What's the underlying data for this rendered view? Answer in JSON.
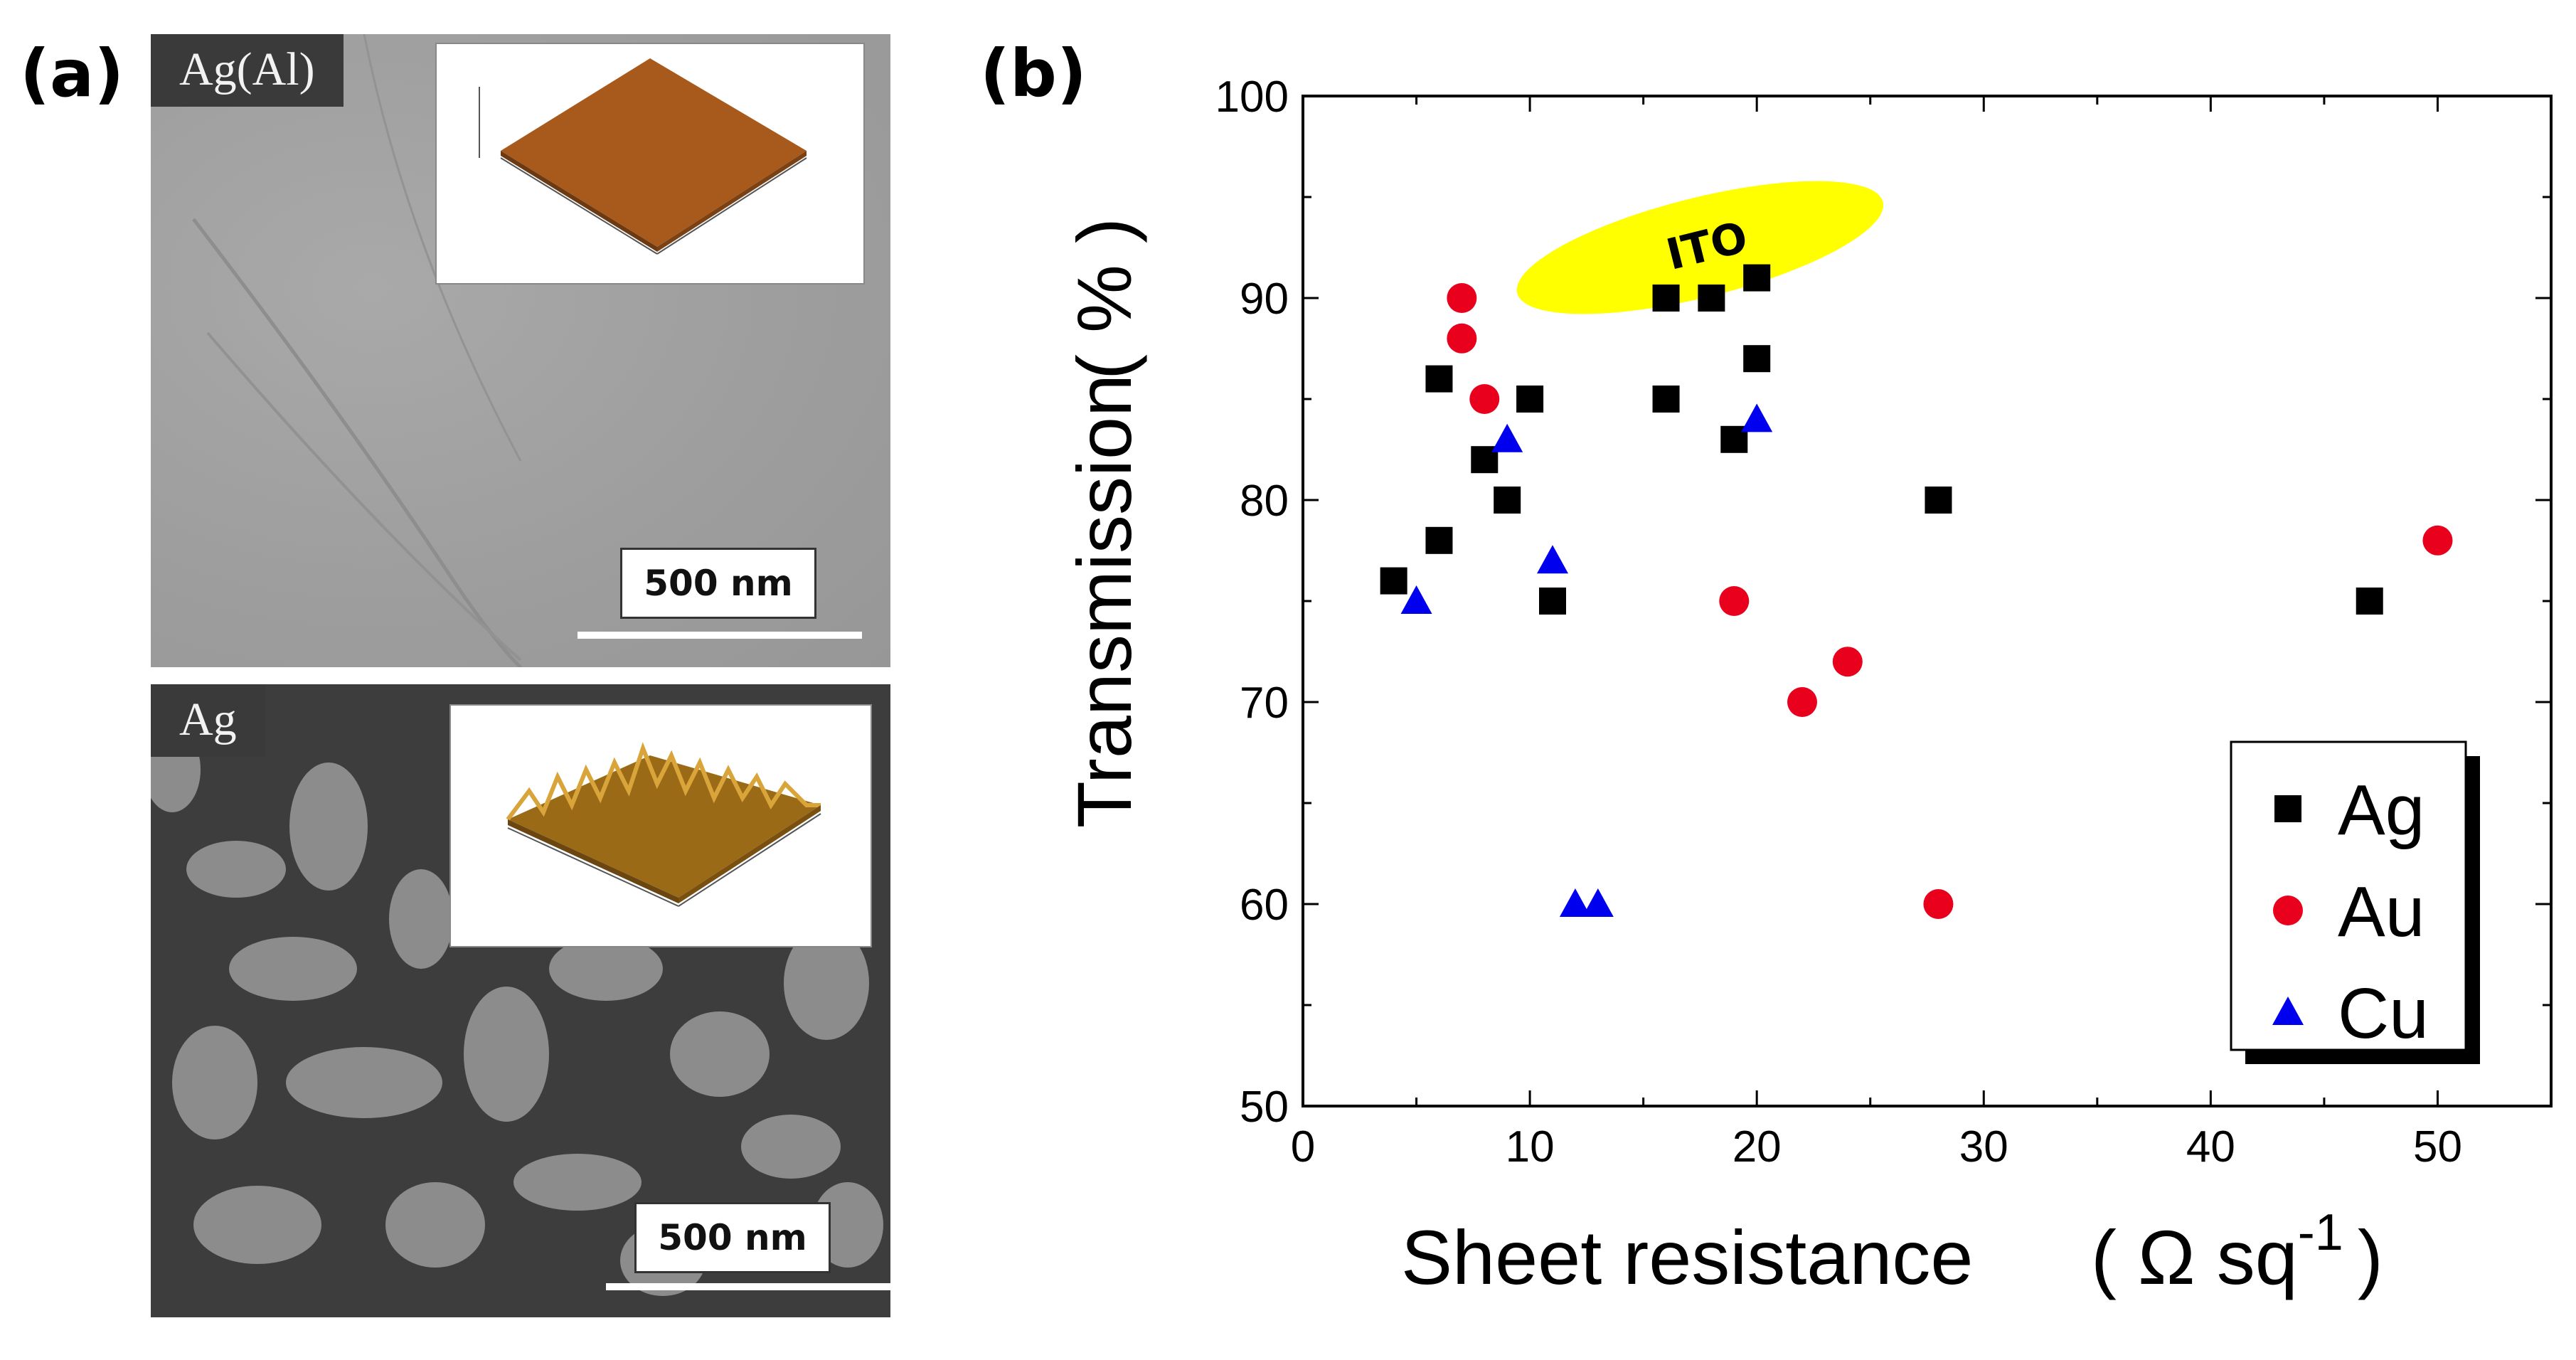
{
  "panel_a": {
    "label": "(a)",
    "top_image": {
      "material_label": "Ag(Al)",
      "scale_bar": "500 nm"
    },
    "bottom_image": {
      "material_label": "Ag",
      "scale_bar": "500 nm"
    }
  },
  "panel_b": {
    "label": "(b)"
  },
  "chart_data": {
    "type": "scatter",
    "title": "",
    "xlabel": "Sheet resistance",
    "xlabel_unit": "( Ω sq",
    "xlabel_unit_exp": "-1",
    "xlabel_unit_close": ")",
    "ylabel": "Transmission",
    "ylabel_unit": "( % )",
    "xlim": [
      0,
      55
    ],
    "ylim": [
      50,
      100
    ],
    "x_ticks": [
      0,
      10,
      20,
      30,
      40,
      50
    ],
    "y_ticks": [
      50,
      60,
      70,
      80,
      90,
      100
    ],
    "x_tick_labels": [
      "0",
      "10",
      "20",
      "30",
      "40",
      "50"
    ],
    "y_tick_labels": [
      "50",
      "60",
      "70",
      "80",
      "90",
      "100"
    ],
    "legend_position": "bottom-right",
    "annotation": {
      "text": "ITO",
      "x": 17.5,
      "y": 92.5,
      "color": "#ffff00"
    },
    "series": [
      {
        "name": "Ag",
        "marker": "square",
        "color": "#000000",
        "points": [
          [
            4,
            76
          ],
          [
            6,
            78
          ],
          [
            6,
            86
          ],
          [
            8,
            82
          ],
          [
            9,
            80
          ],
          [
            10,
            85
          ],
          [
            11,
            75
          ],
          [
            16,
            90
          ],
          [
            16,
            85
          ],
          [
            18,
            90
          ],
          [
            19,
            83
          ],
          [
            20,
            91
          ],
          [
            20,
            87
          ],
          [
            28,
            80
          ],
          [
            47,
            75
          ]
        ]
      },
      {
        "name": "Au",
        "marker": "circle",
        "color": "#e8001c",
        "points": [
          [
            7,
            90
          ],
          [
            7,
            88
          ],
          [
            8,
            85
          ],
          [
            19,
            75
          ],
          [
            22,
            70
          ],
          [
            24,
            72
          ],
          [
            28,
            60
          ],
          [
            50,
            78
          ]
        ]
      },
      {
        "name": "Cu",
        "marker": "triangle",
        "color": "#0000ee",
        "points": [
          [
            5,
            75
          ],
          [
            9,
            83
          ],
          [
            11,
            77
          ],
          [
            12,
            60
          ],
          [
            13,
            60
          ],
          [
            20,
            84
          ]
        ]
      }
    ]
  }
}
